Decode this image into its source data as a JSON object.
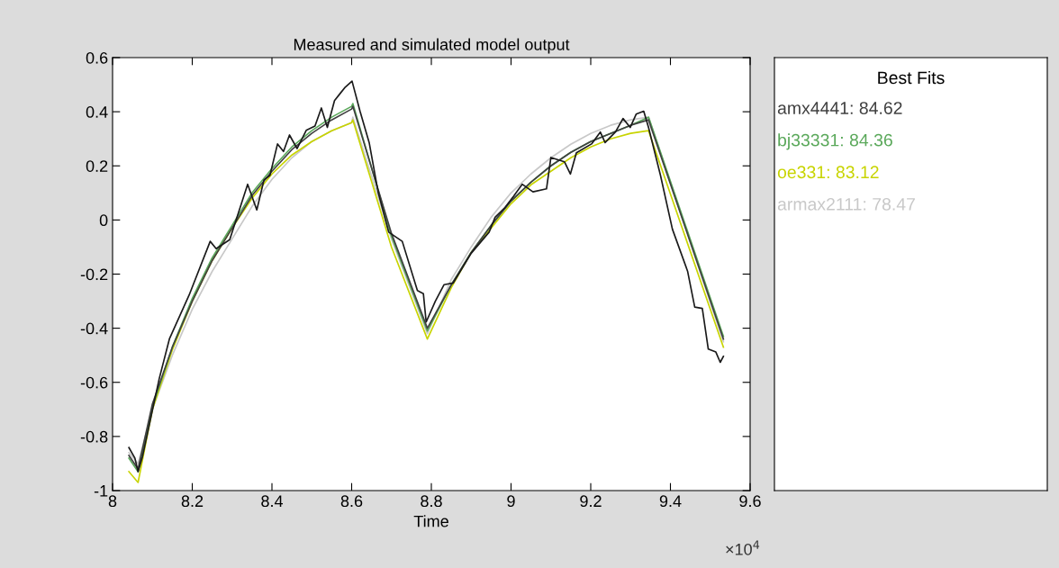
{
  "chart_data": {
    "type": "line",
    "title": "Measured and simulated model output",
    "xlabel": "Time",
    "legend_title": "Best Fits",
    "legend": "right",
    "grid": false,
    "annotations": [
      "×10$^{4}$"
    ],
    "xlim": [
      8,
      9.6
    ],
    "xticks": [
      8,
      8.2,
      8.4,
      8.6,
      8.8,
      9,
      9.2,
      9.4,
      9.6
    ],
    "ylim": [
      -1,
      0.6
    ],
    "yticks": [
      -1,
      -0.8,
      -0.6,
      -0.4,
      -0.2,
      0,
      0.2,
      0.4,
      0.6
    ],
    "series": [
      {
        "name": "armax2111: 78.47",
        "color": "#c8c8c8",
        "x": [
          8.041,
          8.064,
          8.1,
          8.15,
          8.2,
          8.25,
          8.3,
          8.35,
          8.4,
          8.45,
          8.5,
          8.55,
          8.6,
          8.603,
          8.7,
          8.79,
          8.85,
          8.9,
          8.95,
          9.0,
          9.05,
          9.1,
          9.15,
          9.2,
          9.25,
          9.3,
          9.345,
          9.533
        ],
        "values": [
          -0.86,
          -0.9,
          -0.7,
          -0.5,
          -0.33,
          -0.19,
          -0.07,
          0.05,
          0.15,
          0.23,
          0.29,
          0.33,
          0.36,
          0.38,
          -0.07,
          -0.42,
          -0.22,
          -0.1,
          0.01,
          0.1,
          0.17,
          0.23,
          0.28,
          0.32,
          0.35,
          0.37,
          0.38,
          -0.45
        ]
      },
      {
        "name": "oe331: 83.12",
        "color": "#c8d400",
        "x": [
          8.041,
          8.064,
          8.1,
          8.15,
          8.2,
          8.25,
          8.3,
          8.35,
          8.4,
          8.45,
          8.5,
          8.55,
          8.6,
          8.603,
          8.7,
          8.79,
          8.85,
          8.9,
          8.95,
          9.0,
          9.05,
          9.1,
          9.15,
          9.2,
          9.25,
          9.3,
          9.345,
          9.533
        ],
        "values": [
          -0.93,
          -0.97,
          -0.7,
          -0.48,
          -0.3,
          -0.15,
          -0.03,
          0.08,
          0.17,
          0.24,
          0.29,
          0.33,
          0.36,
          0.37,
          -0.1,
          -0.44,
          -0.25,
          -0.12,
          -0.03,
          0.06,
          0.13,
          0.18,
          0.23,
          0.27,
          0.3,
          0.32,
          0.33,
          -0.47
        ]
      },
      {
        "name": "bj33331: 84.36",
        "color": "#5aa85a",
        "x": [
          8.041,
          8.064,
          8.1,
          8.15,
          8.2,
          8.25,
          8.3,
          8.35,
          8.4,
          8.45,
          8.5,
          8.55,
          8.6,
          8.603,
          8.7,
          8.79,
          8.85,
          8.9,
          8.95,
          9.0,
          9.05,
          9.1,
          9.15,
          9.2,
          9.25,
          9.3,
          9.345,
          9.533
        ],
        "values": [
          -0.88,
          -0.93,
          -0.69,
          -0.47,
          -0.29,
          -0.14,
          -0.02,
          0.1,
          0.19,
          0.27,
          0.33,
          0.38,
          0.42,
          0.43,
          -0.06,
          -0.41,
          -0.24,
          -0.12,
          -0.02,
          0.07,
          0.14,
          0.2,
          0.25,
          0.29,
          0.32,
          0.35,
          0.38,
          -0.43
        ]
      },
      {
        "name": "amx4441: 84.62",
        "color": "#404040",
        "x": [
          8.041,
          8.064,
          8.1,
          8.15,
          8.2,
          8.25,
          8.3,
          8.35,
          8.4,
          8.45,
          8.5,
          8.55,
          8.6,
          8.603,
          8.7,
          8.79,
          8.85,
          8.9,
          8.95,
          9.0,
          9.05,
          9.1,
          9.15,
          9.2,
          9.25,
          9.3,
          9.345,
          9.533
        ],
        "values": [
          -0.87,
          -0.92,
          -0.68,
          -0.47,
          -0.3,
          -0.15,
          -0.03,
          0.09,
          0.18,
          0.26,
          0.32,
          0.37,
          0.41,
          0.42,
          -0.05,
          -0.4,
          -0.24,
          -0.12,
          -0.02,
          0.07,
          0.14,
          0.2,
          0.25,
          0.29,
          0.32,
          0.35,
          0.37,
          -0.44
        ]
      },
      {
        "color": "#1a1a1a",
        "x": [
          8.041,
          8.056,
          8.064,
          8.075,
          8.117,
          8.143,
          8.192,
          8.245,
          8.26,
          8.294,
          8.339,
          8.362,
          8.38,
          8.395,
          8.414,
          8.429,
          8.444,
          8.463,
          8.486,
          8.508,
          8.524,
          8.539,
          8.557,
          8.572,
          8.584,
          8.601,
          8.621,
          8.644,
          8.667,
          8.693,
          8.727,
          8.765,
          8.78,
          8.787,
          8.81,
          8.832,
          8.855,
          8.9,
          8.945,
          8.96,
          8.983,
          9.006,
          9.028,
          9.055,
          9.089,
          9.1,
          9.134,
          9.149,
          9.164,
          9.202,
          9.224,
          9.236,
          9.262,
          9.281,
          9.299,
          9.314,
          9.333,
          9.345,
          9.375,
          9.405,
          9.443,
          9.461,
          9.48,
          9.495,
          9.514,
          9.525,
          9.533
        ],
        "values": [
          -0.841,
          -0.88,
          -0.93,
          -0.875,
          -0.587,
          -0.438,
          -0.278,
          -0.079,
          -0.106,
          -0.073,
          0.132,
          0.037,
          0.148,
          0.165,
          0.281,
          0.253,
          0.314,
          0.264,
          0.331,
          0.347,
          0.414,
          0.342,
          0.441,
          0.469,
          0.491,
          0.513,
          0.402,
          0.286,
          0.099,
          -0.045,
          -0.079,
          -0.261,
          -0.272,
          -0.377,
          -0.3,
          -0.239,
          -0.233,
          -0.123,
          -0.045,
          0.01,
          0.043,
          0.087,
          0.132,
          0.104,
          0.115,
          0.231,
          0.215,
          0.17,
          0.248,
          0.281,
          0.325,
          0.286,
          0.325,
          0.375,
          0.342,
          0.391,
          0.402,
          0.342,
          0.165,
          -0.034,
          -0.189,
          -0.322,
          -0.327,
          -0.477,
          -0.488,
          -0.526,
          -0.504
        ]
      }
    ]
  }
}
